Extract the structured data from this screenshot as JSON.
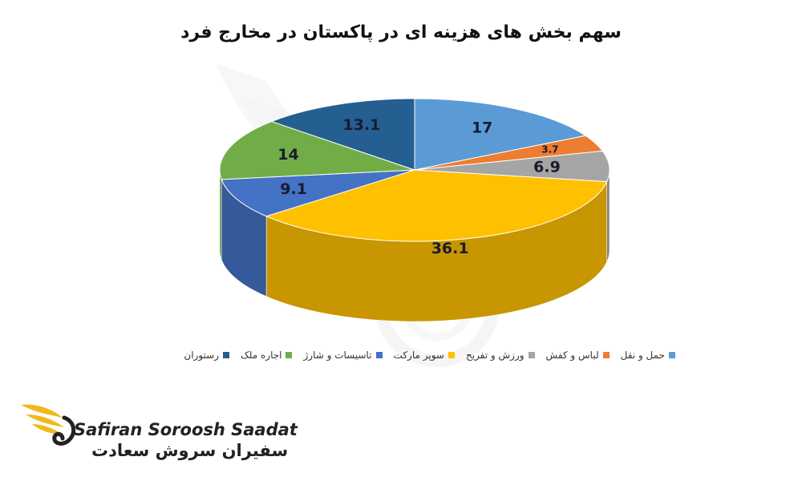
{
  "chart_data": {
    "type": "pie",
    "title": "سهم بخش های هزینه ای در پاکستان در مخارج فرد",
    "legend_position": "bottom",
    "slices": [
      {
        "label": "حمل و نقل",
        "value": 17,
        "value_label": "17",
        "color": "#5b9bd5"
      },
      {
        "label": "لباس و کفش",
        "value": 3.7,
        "value_label": "3.7",
        "color": "#ed7d31"
      },
      {
        "label": "ورزش و تفریح",
        "value": 6.9,
        "value_label": "6.9",
        "color": "#a5a5a5"
      },
      {
        "label": "سوپر مارکت",
        "value": 36.1,
        "value_label": "36.1",
        "color": "#ffc000"
      },
      {
        "label": "تاسیسات و شارژ",
        "value": 9.1,
        "value_label": "9.1",
        "color": "#4472c4"
      },
      {
        "label": "اجاره ملک",
        "value": 14,
        "value_label": "14",
        "color": "#70ad47"
      },
      {
        "label": "رستوران",
        "value": 13.1,
        "value_label": "13.1",
        "color": "#255e91"
      }
    ]
  },
  "logo": {
    "text_en": "Safiran Soroosh Saadat",
    "text_fa": "سفیران سروش سعادت"
  }
}
